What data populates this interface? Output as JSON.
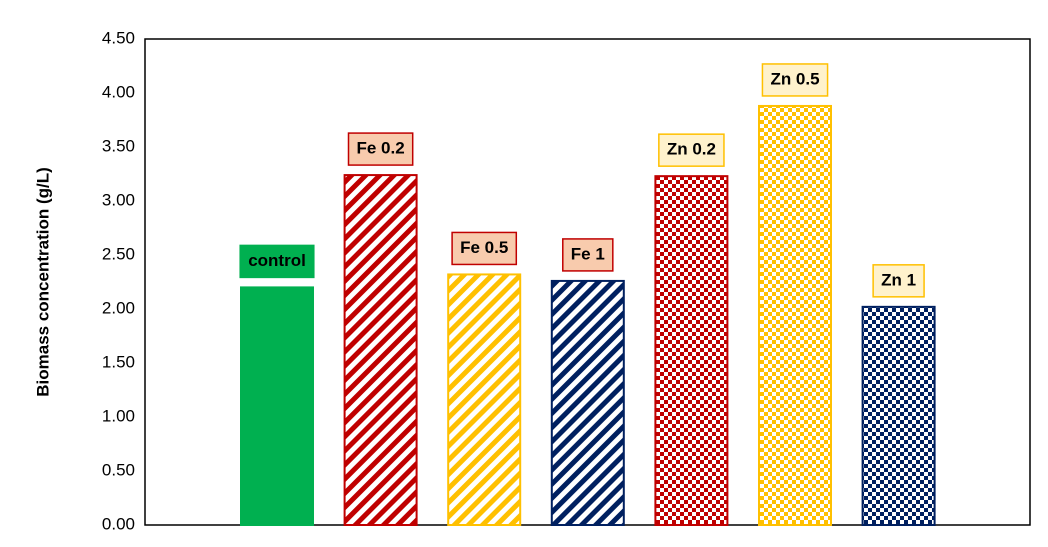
{
  "chart_data": {
    "type": "bar",
    "ylabel": "Biomass concentration (g/L)",
    "categories": [
      "control",
      "Fe 0.2",
      "Fe 0.5",
      "Fe 1",
      "Zn 0.2",
      "Zn 0.5",
      "Zn 1"
    ],
    "values": [
      2.2,
      3.24,
      2.32,
      2.26,
      3.23,
      3.88,
      2.02
    ],
    "colors": [
      "#00b050",
      "#c00000",
      "#ffc000",
      "#002060",
      "#c00000",
      "#ffc000",
      "#002060"
    ],
    "patterns": [
      "solid",
      "stripes",
      "stripes",
      "stripes",
      "checker",
      "checker",
      "checker"
    ],
    "label_fills": [
      "#00b050",
      "#f8cbad",
      "#f8cbad",
      "#f8cbad",
      "#fff2cc",
      "#fff2cc",
      "#fff2cc"
    ],
    "label_borders": [
      "#00b050",
      "#c00000",
      "#c00000",
      "#c00000",
      "#ffc000",
      "#ffc000",
      "#ffc000"
    ],
    "ylim": [
      0,
      4.5
    ],
    "yticks": [
      {
        "value": 0,
        "label": "0.00"
      },
      {
        "value": 0.5,
        "label": "0.50"
      },
      {
        "value": 1,
        "label": "1.00"
      },
      {
        "value": 1.5,
        "label": "1.50"
      },
      {
        "value": 2,
        "label": "2.00"
      },
      {
        "value": 2.5,
        "label": "2.50"
      },
      {
        "value": 3,
        "label": "3.00"
      },
      {
        "value": 3.5,
        "label": "3.50"
      },
      {
        "value": 4,
        "label": "4.00"
      },
      {
        "value": 4.5,
        "label": "4.50"
      }
    ],
    "grid": false
  }
}
